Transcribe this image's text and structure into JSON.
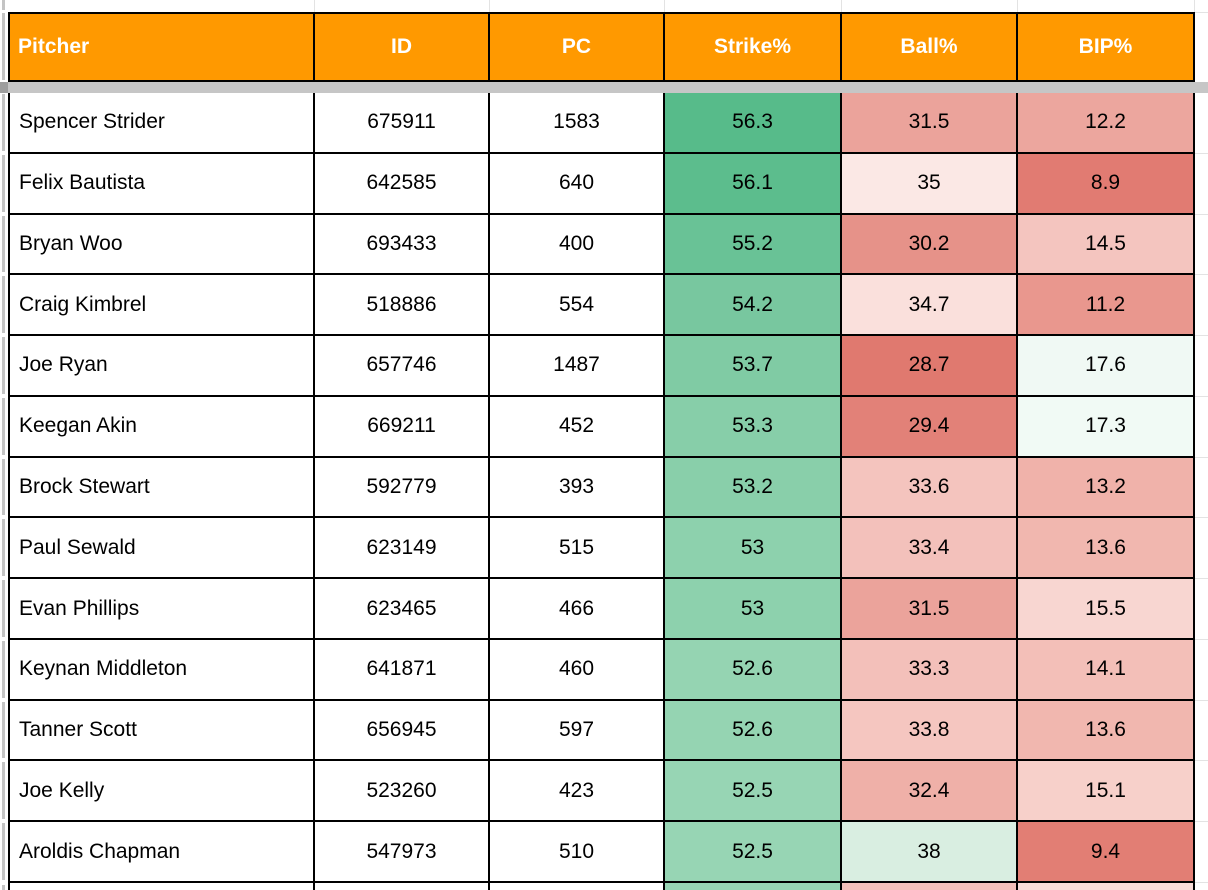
{
  "table": {
    "columns": [
      {
        "key": "pitcher",
        "label": "Pitcher",
        "align": "left"
      },
      {
        "key": "id",
        "label": "ID",
        "align": "center"
      },
      {
        "key": "pc",
        "label": "PC",
        "align": "center"
      },
      {
        "key": "strike",
        "label": "Strike%",
        "align": "center"
      },
      {
        "key": "ball",
        "label": "Ball%",
        "align": "center"
      },
      {
        "key": "bip",
        "label": "BIP%",
        "align": "center"
      }
    ],
    "rows": [
      {
        "pitcher": "Spencer Strider",
        "id": "675911",
        "pc": "1583",
        "strike": "56.3",
        "ball": "31.5",
        "bip": "12.2",
        "strike_bg": "#57BB8A",
        "ball_bg": "#EBA39B",
        "bip_bg": "#ECA69E"
      },
      {
        "pitcher": "Felix Bautista",
        "id": "642585",
        "pc": "640",
        "strike": "56.1",
        "ball": "35",
        "bip": "8.9",
        "strike_bg": "#5CBD8D",
        "ball_bg": "#FBE8E5",
        "bip_bg": "#E17B72"
      },
      {
        "pitcher": "Bryan Woo",
        "id": "693433",
        "pc": "400",
        "strike": "55.2",
        "ball": "30.2",
        "bip": "14.5",
        "strike_bg": "#69C296",
        "ball_bg": "#E69289",
        "bip_bg": "#F4C5BF"
      },
      {
        "pitcher": "Craig Kimbrel",
        "id": "518886",
        "pc": "554",
        "strike": "54.2",
        "ball": "34.7",
        "bip": "11.2",
        "strike_bg": "#78C79F",
        "ball_bg": "#FAE0DC",
        "bip_bg": "#E9978E"
      },
      {
        "pitcher": "Joe Ryan",
        "id": "657746",
        "pc": "1487",
        "strike": "53.7",
        "ball": "28.7",
        "bip": "17.6",
        "strike_bg": "#80CBA4",
        "ball_bg": "#E0796F",
        "bip_bg": "#F0F9F4"
      },
      {
        "pitcher": "Keegan Akin",
        "id": "669211",
        "pc": "452",
        "strike": "53.3",
        "ball": "29.4",
        "bip": "17.3",
        "strike_bg": "#87CEA9",
        "ball_bg": "#E28178",
        "bip_bg": "#F1FAF5"
      },
      {
        "pitcher": "Brock Stewart",
        "id": "592779",
        "pc": "393",
        "strike": "53.2",
        "ball": "33.6",
        "bip": "13.2",
        "strike_bg": "#89CFAA",
        "ball_bg": "#F4C4BE",
        "bip_bg": "#F0B2AA"
      },
      {
        "pitcher": "Paul Sewald",
        "id": "623149",
        "pc": "515",
        "strike": "53",
        "ball": "33.4",
        "bip": "13.6",
        "strike_bg": "#8DD1AD",
        "ball_bg": "#F3C1BB",
        "bip_bg": "#F1B7AF"
      },
      {
        "pitcher": "Evan Phillips",
        "id": "623465",
        "pc": "466",
        "strike": "53",
        "ball": "31.5",
        "bip": "15.5",
        "strike_bg": "#8DD1AD",
        "ball_bg": "#EBA39B",
        "bip_bg": "#F8D6D1"
      },
      {
        "pitcher": "Keynan Middleton",
        "id": "641871",
        "pc": "460",
        "strike": "52.6",
        "ball": "33.3",
        "bip": "14.1",
        "strike_bg": "#95D4B2",
        "ball_bg": "#F3C0BA",
        "bip_bg": "#F3BFB8"
      },
      {
        "pitcher": "Tanner Scott",
        "id": "656945",
        "pc": "597",
        "strike": "52.6",
        "ball": "33.8",
        "bip": "13.6",
        "strike_bg": "#95D4B2",
        "ball_bg": "#F5C6C0",
        "bip_bg": "#F1B7AF"
      },
      {
        "pitcher": "Joe Kelly",
        "id": "523260",
        "pc": "423",
        "strike": "52.5",
        "ball": "32.4",
        "bip": "15.1",
        "strike_bg": "#97D5B4",
        "ball_bg": "#EFB0A8",
        "bip_bg": "#F7D0CA"
      },
      {
        "pitcher": "Aroldis Chapman",
        "id": "547973",
        "pc": "510",
        "strike": "52.5",
        "ball": "38",
        "bip": "9.4",
        "strike_bg": "#97D5B4",
        "ball_bg": "#D9EEE1",
        "bip_bg": "#E27E74"
      }
    ],
    "partial_row_colors": {
      "strike_bg": "#97D5B4",
      "ball_bg": "#F2C0BA",
      "bip_bg": "#F8DCD8"
    }
  },
  "colors": {
    "header_bg": "#FF9900",
    "header_text": "#FFFFFF",
    "cell_border": "#000000",
    "gridline": "#E3E3E3",
    "freeze_bar": "#C6C6C6",
    "left_strip": "#C4C4C4",
    "text": "#000000",
    "row_bg": "#FFFFFF"
  }
}
